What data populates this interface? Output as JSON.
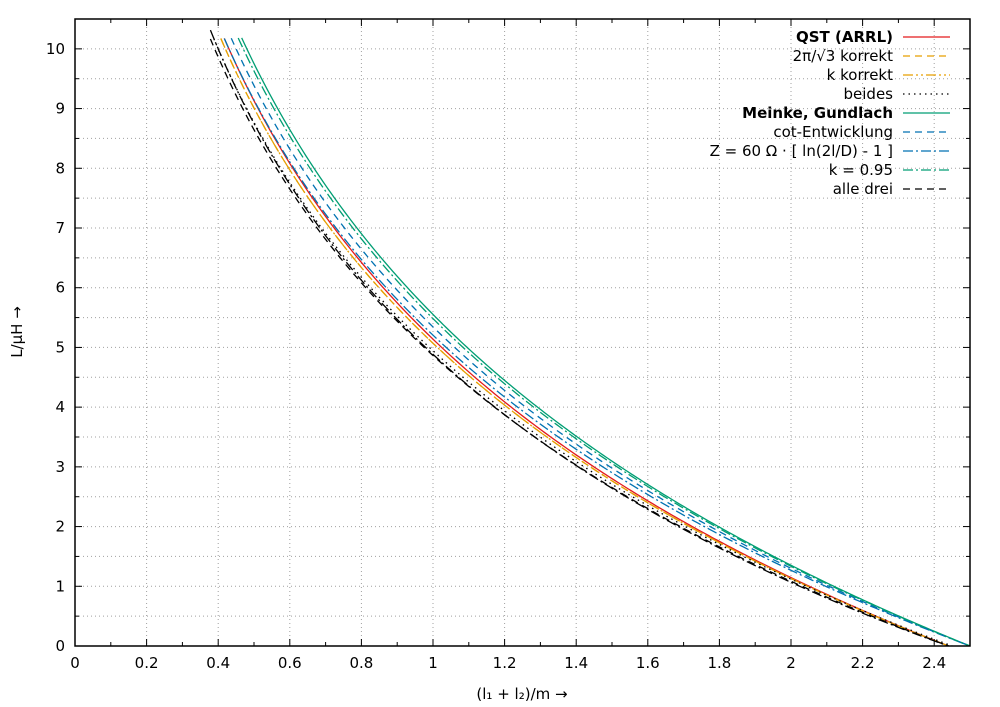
{
  "chart_data": {
    "type": "line",
    "xlabel": "(l₁ + l₂)/m →",
    "ylabel": "L/µH →",
    "xlim": [
      0,
      2.5
    ],
    "ylim": [
      0,
      10.5
    ],
    "xticks": [
      "0",
      "0.2",
      "0.4",
      "0.6",
      "0.8",
      "1",
      "1.2",
      "1.4",
      "1.6",
      "1.8",
      "2",
      "2.2",
      "2.4"
    ],
    "yticks": [
      "0",
      "1",
      "2",
      "3",
      "4",
      "5",
      "6",
      "7",
      "8",
      "9",
      "10"
    ],
    "grid": true,
    "legend_position": "top-right",
    "series": [
      {
        "name": "QST (ARRL)",
        "bold": true,
        "color": "#e41a1c",
        "dash": "",
        "x0": 0.43,
        "x1": 2.44,
        "x_at_10": 0.43
      },
      {
        "name": "2π/√3 korrekt",
        "bold": false,
        "color": "#e69f00",
        "dash": "7,5",
        "x0": 0.42,
        "x1": 2.44,
        "x_at_10": 0.42
      },
      {
        "name": "k korrekt",
        "bold": false,
        "color": "#e69f00",
        "dash": "10,3,2,3,2,3",
        "x0": 0.42,
        "x1": 2.44,
        "x_at_10": 0.42
      },
      {
        "name": "beides",
        "bold": false,
        "color": "#000000",
        "dash": "1.5,4",
        "x0": 0.4,
        "x1": 2.45,
        "x_at_10": 0.4
      },
      {
        "name": "Meinke, Gundlach",
        "bold": true,
        "color": "#009e73",
        "dash": "",
        "x0": 0.48,
        "x1": 2.5,
        "x_at_10": 0.48
      },
      {
        "name": "cot-Entwicklung",
        "bold": false,
        "color": "#0072b2",
        "dash": "7,5",
        "x0": 0.45,
        "x1": 2.5,
        "x_at_10": 0.45
      },
      {
        "name": "Z = 60 Ω · [ ln(2l/D) - 1 ]",
        "bold": false,
        "color": "#0072b2",
        "dash": "10,3,2,3",
        "x0": 0.43,
        "x1": 2.5,
        "x_at_10": 0.43
      },
      {
        "name": "k = 0.95",
        "bold": false,
        "color": "#009e73",
        "dash": "10,3,2,3",
        "x0": 0.47,
        "x1": 2.5,
        "x_at_10": 0.47
      },
      {
        "name": "alle drei",
        "bold": false,
        "color": "#000000",
        "dash": "7,5",
        "x0": 0.39,
        "x1": 2.44,
        "x_at_10": 0.39
      }
    ],
    "extra_curve": {
      "color": "#000000",
      "dash": "10,3,2,3",
      "x0": 0.39,
      "x1": 2.44,
      "x_at_10": 0.4
    }
  }
}
